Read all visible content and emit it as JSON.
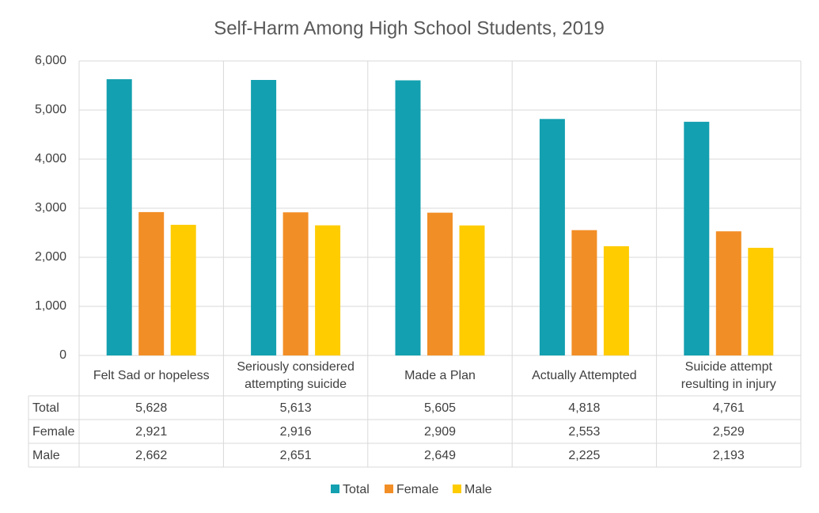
{
  "chart_data": {
    "type": "bar",
    "title": "Self-Harm Among High School Students, 2019",
    "categories": [
      "Felt Sad or hopeless",
      "Seriously considered attempting suicide",
      "Made a Plan",
      "Actually Attempted",
      "Suicide attempt resulting in injury"
    ],
    "series": [
      {
        "name": "Total",
        "color": "#13a0b0",
        "values": [
          5628,
          5613,
          5605,
          4818,
          4761
        ],
        "value_labels": [
          "5,628",
          "5,613",
          "5,605",
          "4,818",
          "4,761"
        ]
      },
      {
        "name": "Female",
        "color": "#f28e26",
        "values": [
          2921,
          2916,
          2909,
          2553,
          2529
        ],
        "value_labels": [
          "2,921",
          "2,916",
          "2,909",
          "2,553",
          "2,529"
        ]
      },
      {
        "name": "Male",
        "color": "#ffcc00",
        "values": [
          2662,
          2651,
          2649,
          2225,
          2193
        ],
        "value_labels": [
          "2,662",
          "2,651",
          "2,649",
          "2,225",
          "2,193"
        ]
      }
    ],
    "ylim": [
      0,
      6000
    ],
    "yticks": [
      0,
      {
        "value": 1000,
        "label": "1,000"
      },
      {
        "value": 2000,
        "label": "2,000"
      },
      {
        "value": 3000,
        "label": "3,000"
      },
      {
        "value": 4000,
        "label": "4,000"
      },
      {
        "value": 5000,
        "label": "5,000"
      },
      {
        "value": 6000,
        "label": "6,000"
      }
    ],
    "grid": true
  }
}
